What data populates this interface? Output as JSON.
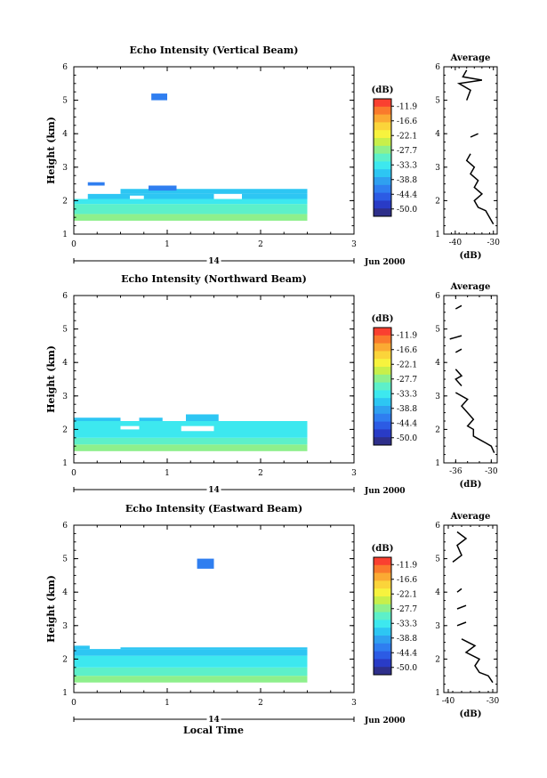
{
  "figure": {
    "date_label": "Jun 2000",
    "day_label": "14",
    "bottom_xlabel": "Local Time"
  },
  "colorbar": {
    "unit_label": "(dB)",
    "tick_labels": [
      "-11.9",
      "-16.6",
      "-22.1",
      "-27.7",
      "-33.3",
      "-38.8",
      "-44.4",
      "-50.0"
    ],
    "colors": [
      "#fa4030",
      "#fa7a2c",
      "#fbaa33",
      "#fbd43a",
      "#f7f33e",
      "#c8ef4a",
      "#8ef08c",
      "#5df0c9",
      "#3de8ef",
      "#2dc6f3",
      "#2fa0f0",
      "#2f7ef0",
      "#2c5be4",
      "#293bc6",
      "#2e2f8a"
    ]
  },
  "chart_data": [
    {
      "type": "heatmap",
      "title": "Echo Intensity (Vertical Beam)",
      "ylabel": "Height (km)",
      "xlim": [
        0,
        3
      ],
      "ylim": [
        1,
        6
      ],
      "x_ticks": [
        "0",
        "1",
        "2",
        "3"
      ],
      "y_ticks": [
        "1",
        "2",
        "3",
        "4",
        "5",
        "6"
      ],
      "blocks": [
        {
          "x0": 0.0,
          "x1": 2.5,
          "y0": 1.4,
          "y1": 1.6,
          "color": "#8ef08c"
        },
        {
          "x0": 0.0,
          "x1": 2.5,
          "y0": 1.6,
          "y1": 1.9,
          "color": "#5df0c9"
        },
        {
          "x0": 0.0,
          "x1": 2.5,
          "y0": 1.9,
          "y1": 2.05,
          "color": "#3de8ef"
        },
        {
          "x0": 0.15,
          "x1": 2.5,
          "y0": 2.05,
          "y1": 2.2,
          "color": "#2dc6f3"
        },
        {
          "x0": 0.5,
          "x1": 2.5,
          "y0": 2.2,
          "y1": 2.35,
          "color": "#2dc6f3"
        },
        {
          "x0": 0.8,
          "x1": 1.1,
          "y0": 2.3,
          "y1": 2.45,
          "color": "#2f7ef0"
        },
        {
          "x0": 0.15,
          "x1": 0.33,
          "y0": 2.45,
          "y1": 2.55,
          "color": "#2f7ef0"
        },
        {
          "x0": 0.83,
          "x1": 1.0,
          "y0": 5.0,
          "y1": 5.2,
          "color": "#2f7ef0"
        },
        {
          "x0": 1.5,
          "x1": 1.8,
          "y0": 2.05,
          "y1": 2.2,
          "color": "#ffffff"
        },
        {
          "x0": 0.6,
          "x1": 0.75,
          "y0": 2.05,
          "y1": 2.15,
          "color": "#ffffff"
        }
      ],
      "average": {
        "xlabel": "(dB)",
        "title": "Average",
        "xlim": [
          -43,
          -29
        ],
        "ylim": [
          1,
          6
        ],
        "x_ticks": [
          {
            "value": -40,
            "label": "-40"
          },
          {
            "value": -30,
            "label": "-30"
          }
        ],
        "y_ticks": [
          "1",
          "2",
          "3",
          "4",
          "5",
          "6"
        ],
        "segments": [
          [
            [
              -30,
              1.3
            ],
            [
              -31,
              1.5
            ],
            [
              -32,
              1.7
            ],
            [
              -34,
              1.8
            ],
            [
              -35,
              2.0
            ],
            [
              -33,
              2.2
            ],
            [
              -35,
              2.4
            ],
            [
              -34,
              2.6
            ],
            [
              -36,
              2.8
            ],
            [
              -35,
              3.0
            ],
            [
              -37,
              3.2
            ],
            [
              -36,
              3.4
            ]
          ],
          [
            [
              -36,
              3.9
            ],
            [
              -34,
              4.0
            ]
          ],
          [
            [
              -37,
              5.0
            ],
            [
              -36,
              5.3
            ],
            [
              -39,
              5.5
            ],
            [
              -33,
              5.6
            ],
            [
              -38,
              5.7
            ],
            [
              -37,
              5.9
            ]
          ]
        ]
      }
    },
    {
      "type": "heatmap",
      "title": "Echo Intensity (Northward Beam)",
      "ylabel": "Height (km)",
      "xlim": [
        0,
        3
      ],
      "ylim": [
        1,
        6
      ],
      "x_ticks": [
        "0",
        "1",
        "2",
        "3"
      ],
      "y_ticks": [
        "1",
        "2",
        "3",
        "4",
        "5",
        "6"
      ],
      "blocks": [
        {
          "x0": 0.0,
          "x1": 2.5,
          "y0": 1.35,
          "y1": 1.55,
          "color": "#8ef08c"
        },
        {
          "x0": 0.0,
          "x1": 2.5,
          "y0": 1.55,
          "y1": 1.75,
          "color": "#5df0c9"
        },
        {
          "x0": 0.0,
          "x1": 2.5,
          "y0": 1.75,
          "y1": 2.25,
          "color": "#3de8ef"
        },
        {
          "x0": 0.0,
          "x1": 0.5,
          "y0": 2.25,
          "y1": 2.35,
          "color": "#2dc6f3"
        },
        {
          "x0": 0.7,
          "x1": 0.95,
          "y0": 2.25,
          "y1": 2.35,
          "color": "#2dc6f3"
        },
        {
          "x0": 1.2,
          "x1": 1.55,
          "y0": 2.25,
          "y1": 2.45,
          "color": "#2dc6f3"
        },
        {
          "x0": 1.15,
          "x1": 1.5,
          "y0": 1.95,
          "y1": 2.1,
          "color": "#ffffff"
        },
        {
          "x0": 0.5,
          "x1": 0.7,
          "y0": 2.0,
          "y1": 2.1,
          "color": "#ffffff"
        }
      ],
      "average": {
        "xlabel": "(dB)",
        "title": "Average",
        "xlim": [
          -38,
          -29
        ],
        "ylim": [
          1,
          6
        ],
        "x_ticks": [
          {
            "value": -36,
            "label": "-36"
          },
          {
            "value": -30,
            "label": "-30"
          }
        ],
        "y_ticks": [
          "1",
          "2",
          "3",
          "4",
          "5",
          "6"
        ],
        "segments": [
          [
            [
              -29.5,
              1.3
            ],
            [
              -30,
              1.5
            ],
            [
              -31,
              1.6
            ],
            [
              -32,
              1.7
            ],
            [
              -33,
              1.8
            ],
            [
              -33,
              2.0
            ],
            [
              -34,
              2.1
            ],
            [
              -33,
              2.3
            ],
            [
              -34,
              2.5
            ],
            [
              -35,
              2.7
            ],
            [
              -34,
              2.9
            ],
            [
              -36,
              3.1
            ]
          ],
          [
            [
              -35,
              3.3
            ],
            [
              -36,
              3.5
            ],
            [
              -35,
              3.6
            ],
            [
              -36,
              3.8
            ]
          ],
          [
            [
              -36,
              4.3
            ],
            [
              -35,
              4.4
            ]
          ],
          [
            [
              -37,
              4.7
            ],
            [
              -35,
              4.8
            ]
          ],
          [
            [
              -36,
              5.6
            ],
            [
              -35,
              5.7
            ]
          ]
        ]
      }
    },
    {
      "type": "heatmap",
      "title": "Echo Intensity (Eastward Beam)",
      "ylabel": "Height (km)",
      "xlim": [
        0,
        3
      ],
      "ylim": [
        1,
        6
      ],
      "x_ticks": [
        "0",
        "1",
        "2",
        "3"
      ],
      "y_ticks": [
        "1",
        "2",
        "3",
        "4",
        "5",
        "6"
      ],
      "blocks": [
        {
          "x0": 0.0,
          "x1": 2.5,
          "y0": 1.3,
          "y1": 1.5,
          "color": "#8ef08c"
        },
        {
          "x0": 0.0,
          "x1": 2.5,
          "y0": 1.5,
          "y1": 1.75,
          "color": "#5df0c9"
        },
        {
          "x0": 0.0,
          "x1": 2.5,
          "y0": 1.75,
          "y1": 2.1,
          "color": "#3de8ef"
        },
        {
          "x0": 0.0,
          "x1": 2.5,
          "y0": 2.1,
          "y1": 2.3,
          "color": "#2dc6f3"
        },
        {
          "x0": 0.0,
          "x1": 0.17,
          "y0": 2.3,
          "y1": 2.4,
          "color": "#2dc6f3"
        },
        {
          "x0": 0.5,
          "x1": 2.5,
          "y0": 2.3,
          "y1": 2.35,
          "color": "#2dc6f3"
        },
        {
          "x0": 1.32,
          "x1": 1.5,
          "y0": 4.7,
          "y1": 5.0,
          "color": "#2f7ef0"
        }
      ],
      "average": {
        "xlabel": "(dB)",
        "title": "Average",
        "xlim": [
          -41,
          -29
        ],
        "ylim": [
          1,
          6
        ],
        "x_ticks": [
          {
            "value": -40,
            "label": "-40"
          },
          {
            "value": -30,
            "label": "-30"
          }
        ],
        "y_ticks": [
          "1",
          "2",
          "3",
          "4",
          "5",
          "6"
        ],
        "segments": [
          [
            [
              -30,
              1.3
            ],
            [
              -31,
              1.5
            ],
            [
              -33,
              1.6
            ],
            [
              -34,
              1.8
            ],
            [
              -33,
              2.0
            ],
            [
              -36,
              2.2
            ],
            [
              -34,
              2.4
            ],
            [
              -37,
              2.6
            ]
          ],
          [
            [
              -38,
              3.0
            ],
            [
              -36,
              3.1
            ]
          ],
          [
            [
              -38,
              3.5
            ],
            [
              -36,
              3.6
            ]
          ],
          [
            [
              -38,
              4.0
            ],
            [
              -37,
              4.1
            ]
          ],
          [
            [
              -39,
              4.9
            ],
            [
              -37,
              5.1
            ],
            [
              -38,
              5.4
            ],
            [
              -36,
              5.6
            ],
            [
              -38,
              5.8
            ]
          ]
        ]
      }
    }
  ]
}
